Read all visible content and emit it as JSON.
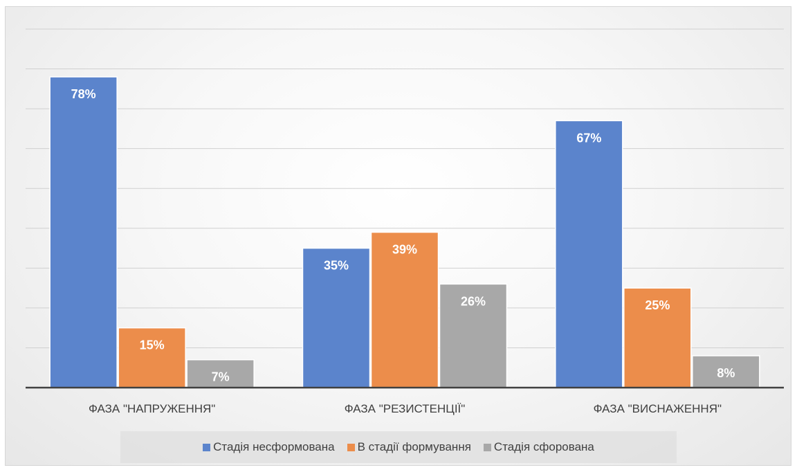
{
  "chart_data": {
    "type": "bar",
    "categories": [
      "ФАЗА \"НАПРУЖЕННЯ\"",
      "ФАЗА \"РЕЗИСТЕНЦІЇ\"",
      "ФАЗА \"ВИСНАЖЕННЯ\""
    ],
    "series": [
      {
        "name": "Стадія несформована",
        "color": "#5B84CC",
        "values": [
          78,
          35,
          67
        ],
        "labels": [
          "78%",
          "35%",
          "67%"
        ]
      },
      {
        "name": "В стадії формування",
        "color": "#EC8D4B",
        "values": [
          15,
          39,
          25
        ],
        "labels": [
          "15%",
          "39%",
          "25%"
        ]
      },
      {
        "name": "Стадія сфорована",
        "color": "#A8A8A8",
        "values": [
          7,
          26,
          8
        ],
        "labels": [
          "7%",
          "26%",
          "8%"
        ]
      }
    ],
    "ylim": [
      0,
      90
    ],
    "grid": true,
    "legend": "bottom"
  }
}
